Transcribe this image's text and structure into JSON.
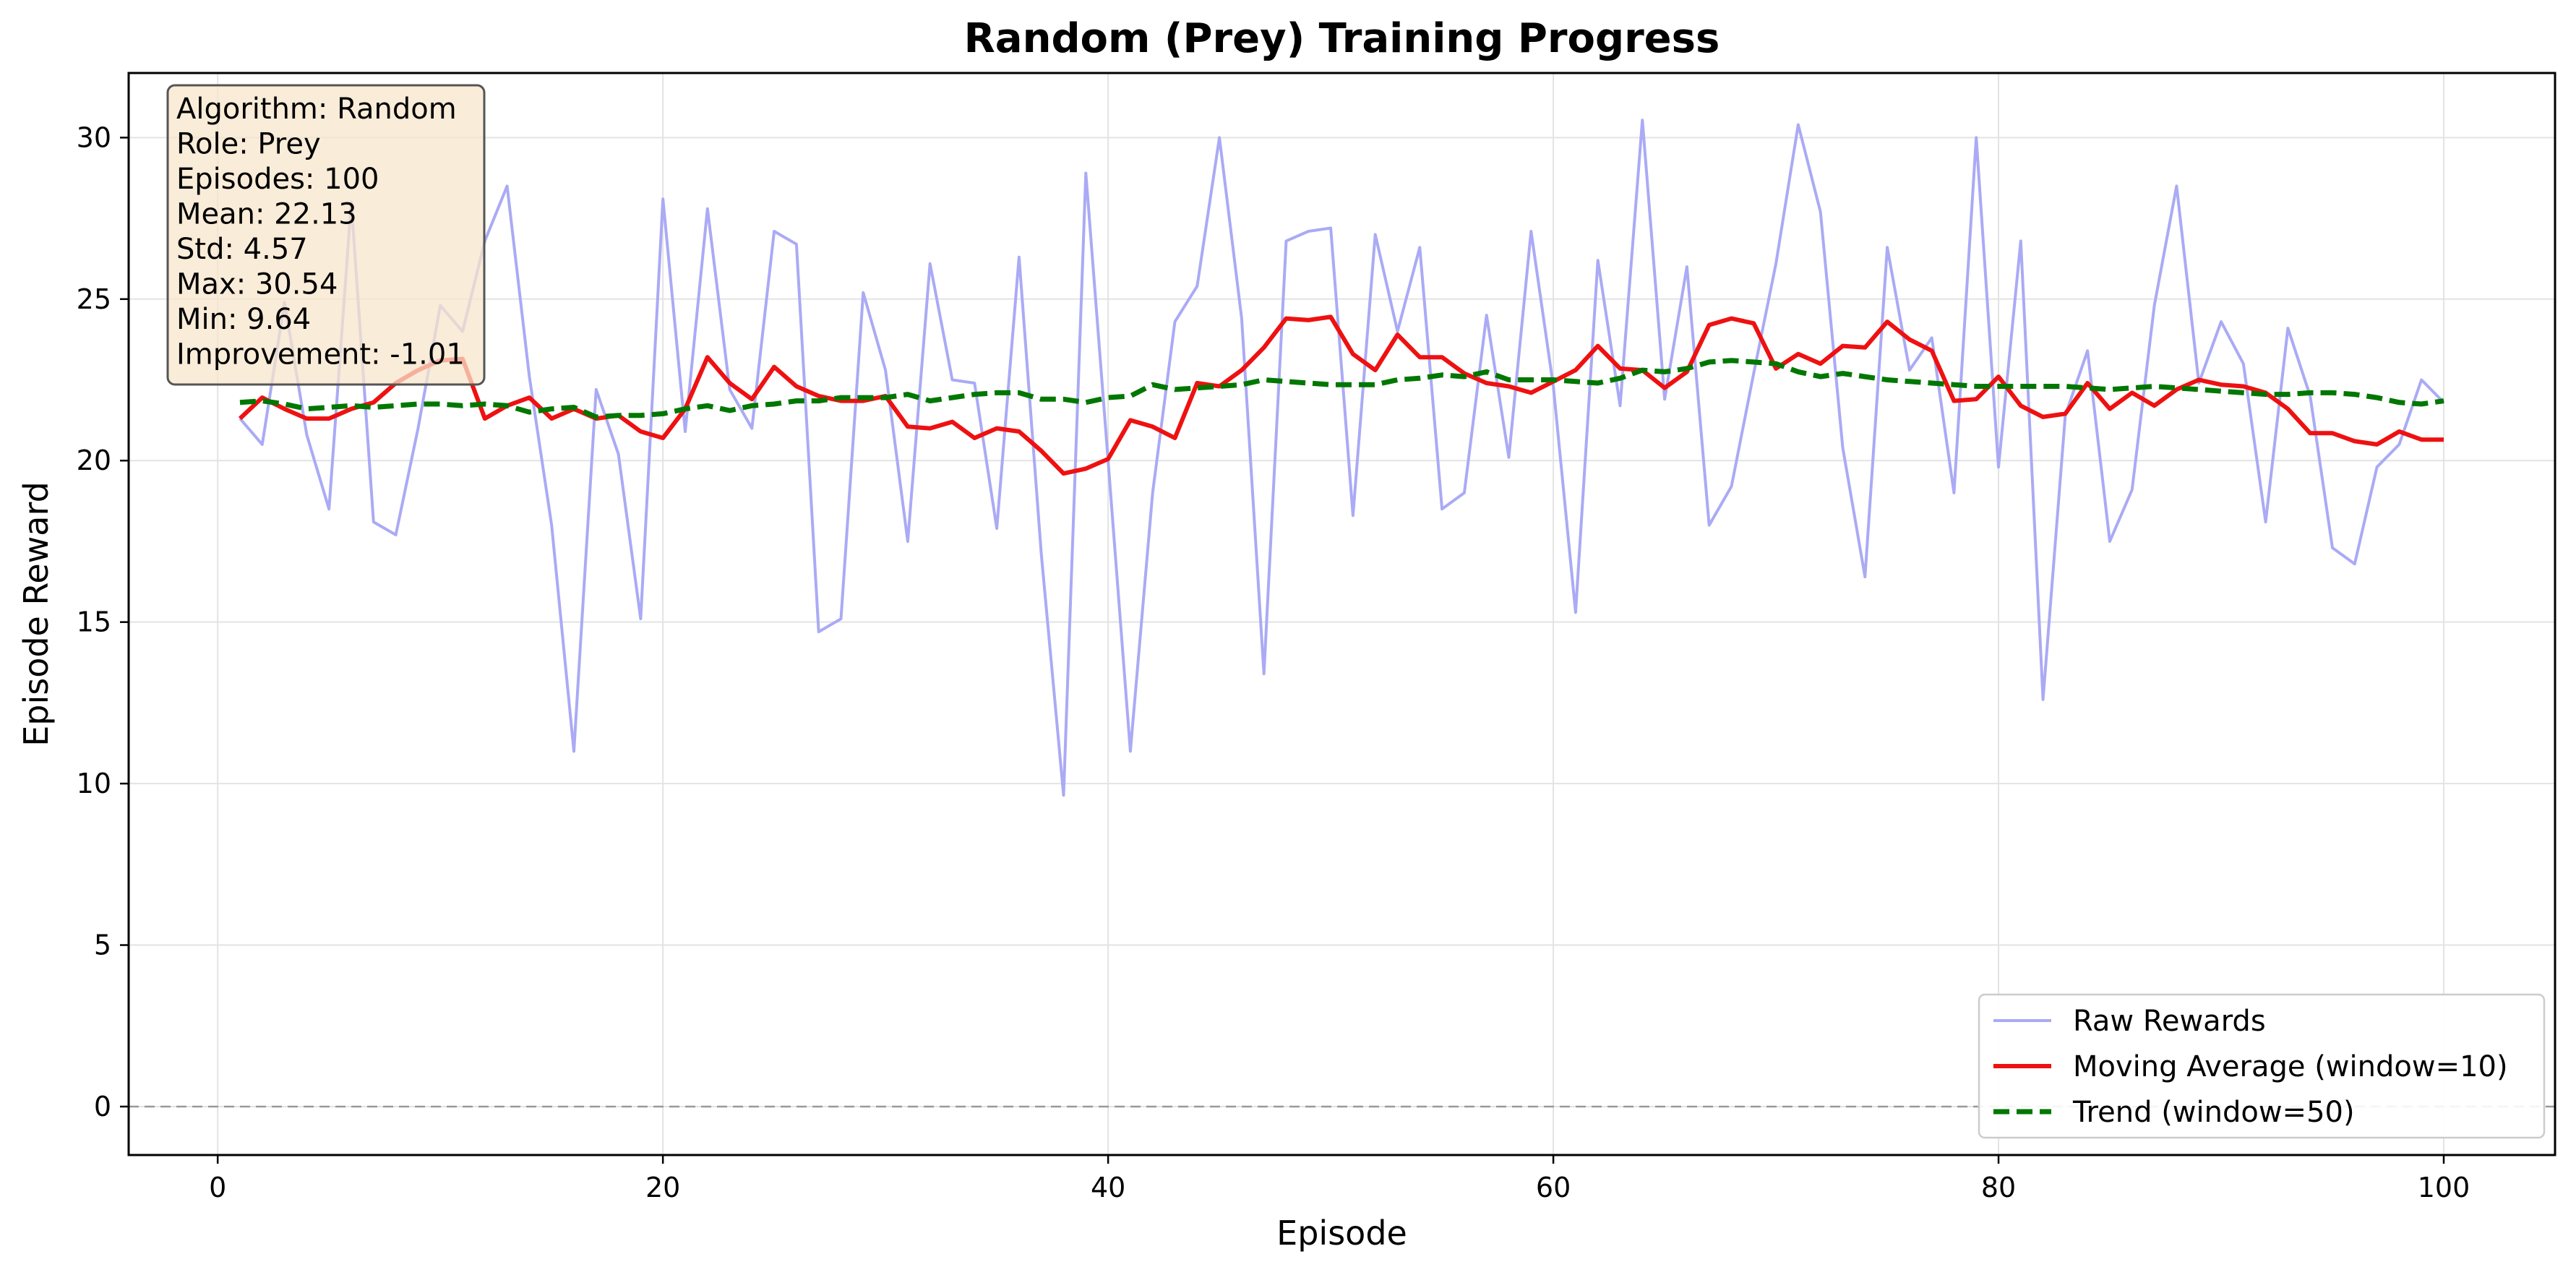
{
  "chart_data": {
    "type": "line",
    "title": "Random (Prey) Training Progress",
    "xlabel": "Episode",
    "ylabel": "Episode Reward",
    "xlim": [
      -4,
      105
    ],
    "ylim": [
      -1.5,
      32
    ],
    "x_ticks": [
      0,
      20,
      40,
      60,
      80,
      100
    ],
    "y_ticks": [
      0,
      5,
      10,
      15,
      20,
      25,
      30
    ],
    "grid": true,
    "reference_line": {
      "y": 0,
      "style": "dashed",
      "color": "#999999"
    },
    "legend_position": "lower-right",
    "stats_box": {
      "position": "upper-left",
      "lines": [
        "Algorithm: Random",
        "Role: Prey",
        "Episodes: 100",
        "Mean: 22.13",
        "Std: 4.57",
        "Max: 30.54",
        "Min: 9.64",
        "Improvement: -1.01"
      ]
    },
    "series": [
      {
        "name": "Raw Rewards",
        "color": "#aaaaf5",
        "style": "solid",
        "x": [
          1,
          2,
          3,
          4,
          5,
          6,
          7,
          8,
          9,
          10,
          11,
          12,
          13,
          14,
          15,
          16,
          17,
          18,
          19,
          20,
          21,
          22,
          23,
          24,
          25,
          26,
          27,
          28,
          29,
          30,
          31,
          32,
          33,
          34,
          35,
          36,
          37,
          38,
          39,
          40,
          41,
          42,
          43,
          44,
          45,
          46,
          47,
          48,
          49,
          50,
          51,
          52,
          53,
          54,
          55,
          56,
          57,
          58,
          59,
          60,
          61,
          62,
          63,
          64,
          65,
          66,
          67,
          68,
          69,
          70,
          71,
          72,
          73,
          74,
          75,
          76,
          77,
          78,
          79,
          80,
          81,
          82,
          83,
          84,
          85,
          86,
          87,
          88,
          89,
          90,
          91,
          92,
          93,
          94,
          95,
          96,
          97,
          98,
          99,
          100
        ],
        "y": [
          21.3,
          20.5,
          24.9,
          20.8,
          18.5,
          28.0,
          18.1,
          17.7,
          21.0,
          24.8,
          24.0,
          26.8,
          28.5,
          22.6,
          18.0,
          11.0,
          22.2,
          20.2,
          15.1,
          28.1,
          20.9,
          27.8,
          22.2,
          21.0,
          27.1,
          26.7,
          14.7,
          15.1,
          25.2,
          22.8,
          17.5,
          26.1,
          22.5,
          22.4,
          17.9,
          26.3,
          17.1,
          9.64,
          28.9,
          20.0,
          11.0,
          19.0,
          24.3,
          25.4,
          30.0,
          24.4,
          13.4,
          26.8,
          27.1,
          27.2,
          18.3,
          27.0,
          24.0,
          26.6,
          18.5,
          19.0,
          24.5,
          20.1,
          27.1,
          22.3,
          15.3,
          26.2,
          21.7,
          30.54,
          21.9,
          26.0,
          18.0,
          19.2,
          22.7,
          26.1,
          30.4,
          27.7,
          20.4,
          16.4,
          26.6,
          22.8,
          23.8,
          19.0,
          30.0,
          19.8,
          26.8,
          12.6,
          21.4,
          23.4,
          17.5,
          19.1,
          24.8,
          28.5,
          22.4,
          24.3,
          23.0,
          18.1,
          24.1,
          22.0,
          17.3,
          16.8,
          19.8,
          20.5,
          22.5,
          21.8
        ]
      },
      {
        "name": "Moving Average (window=10)",
        "color": "#ee1111",
        "style": "solid",
        "x": [
          1,
          2,
          3,
          4,
          5,
          6,
          7,
          8,
          9,
          10,
          11,
          12,
          13,
          14,
          15,
          16,
          17,
          18,
          19,
          20,
          21,
          22,
          23,
          24,
          25,
          26,
          27,
          28,
          29,
          30,
          31,
          32,
          33,
          34,
          35,
          36,
          37,
          38,
          39,
          40,
          41,
          42,
          43,
          44,
          45,
          46,
          47,
          48,
          49,
          50,
          51,
          52,
          53,
          54,
          55,
          56,
          57,
          58,
          59,
          60,
          61,
          62,
          63,
          64,
          65,
          66,
          67,
          68,
          69,
          70,
          71,
          72,
          73,
          74,
          75,
          76,
          77,
          78,
          79,
          80,
          81,
          82,
          83,
          84,
          85,
          86,
          87,
          88,
          89,
          90,
          91,
          92,
          93,
          94,
          95,
          96,
          97,
          98,
          99,
          100
        ],
        "y": [
          21.3,
          21.95,
          21.6,
          21.3,
          21.3,
          21.6,
          21.8,
          22.4,
          22.8,
          23.1,
          23.15,
          21.3,
          21.7,
          21.95,
          21.3,
          21.6,
          21.3,
          21.4,
          20.9,
          20.7,
          21.6,
          23.2,
          22.4,
          21.9,
          22.9,
          22.3,
          22.0,
          21.85,
          21.85,
          22.0,
          21.05,
          21.0,
          21.2,
          20.7,
          21.0,
          20.9,
          20.3,
          19.6,
          19.75,
          20.05,
          21.25,
          21.05,
          20.7,
          22.4,
          22.3,
          22.8,
          23.5,
          24.4,
          24.35,
          24.45,
          23.3,
          22.8,
          23.9,
          23.2,
          23.2,
          22.7,
          22.4,
          22.3,
          22.1,
          22.45,
          22.8,
          23.55,
          22.85,
          22.8,
          22.25,
          22.75,
          24.2,
          24.4,
          24.25,
          22.85,
          23.3,
          23.0,
          23.55,
          23.5,
          24.3,
          23.75,
          23.4,
          21.85,
          21.9,
          22.6,
          21.7,
          21.35,
          21.45,
          22.4,
          21.6,
          22.1,
          21.7,
          22.2,
          22.5,
          22.35,
          22.3,
          22.1,
          21.6,
          20.85,
          20.85,
          20.6,
          20.5,
          20.9,
          20.65,
          20.65
        ]
      },
      {
        "name": "Trend (window=50)",
        "color": "#007700",
        "style": "dashed",
        "x": [
          1,
          2,
          3,
          4,
          5,
          6,
          7,
          8,
          9,
          10,
          11,
          12,
          13,
          14,
          15,
          16,
          17,
          18,
          19,
          20,
          21,
          22,
          23,
          24,
          25,
          26,
          27,
          28,
          29,
          30,
          31,
          32,
          33,
          34,
          35,
          36,
          37,
          38,
          39,
          40,
          41,
          42,
          43,
          44,
          45,
          46,
          47,
          48,
          49,
          50,
          51,
          52,
          53,
          54,
          55,
          56,
          57,
          58,
          59,
          60,
          61,
          62,
          63,
          64,
          65,
          66,
          67,
          68,
          69,
          70,
          71,
          72,
          73,
          74,
          75,
          76,
          77,
          78,
          79,
          80,
          81,
          82,
          83,
          84,
          85,
          86,
          87,
          88,
          89,
          90,
          91,
          92,
          93,
          94,
          95,
          96,
          97,
          98,
          99,
          100
        ],
        "y": [
          21.8,
          21.85,
          21.75,
          21.6,
          21.65,
          21.7,
          21.65,
          21.7,
          21.75,
          21.75,
          21.7,
          21.75,
          21.7,
          21.5,
          21.6,
          21.65,
          21.35,
          21.4,
          21.4,
          21.45,
          21.6,
          21.7,
          21.55,
          21.7,
          21.75,
          21.85,
          21.85,
          21.95,
          21.95,
          21.95,
          22.05,
          21.85,
          21.95,
          22.05,
          22.1,
          22.1,
          21.9,
          21.9,
          21.8,
          21.95,
          22.0,
          22.35,
          22.2,
          22.25,
          22.3,
          22.35,
          22.5,
          22.45,
          22.4,
          22.35,
          22.35,
          22.35,
          22.5,
          22.55,
          22.65,
          22.6,
          22.75,
          22.5,
          22.5,
          22.5,
          22.45,
          22.4,
          22.55,
          22.8,
          22.75,
          22.85,
          23.05,
          23.1,
          23.05,
          23.0,
          22.75,
          22.6,
          22.7,
          22.6,
          22.5,
          22.45,
          22.4,
          22.35,
          22.3,
          22.3,
          22.3,
          22.3,
          22.3,
          22.25,
          22.2,
          22.25,
          22.3,
          22.25,
          22.2,
          22.15,
          22.1,
          22.05,
          22.05,
          22.1,
          22.1,
          22.05,
          21.95,
          21.8,
          21.75,
          21.85
        ]
      }
    ]
  }
}
